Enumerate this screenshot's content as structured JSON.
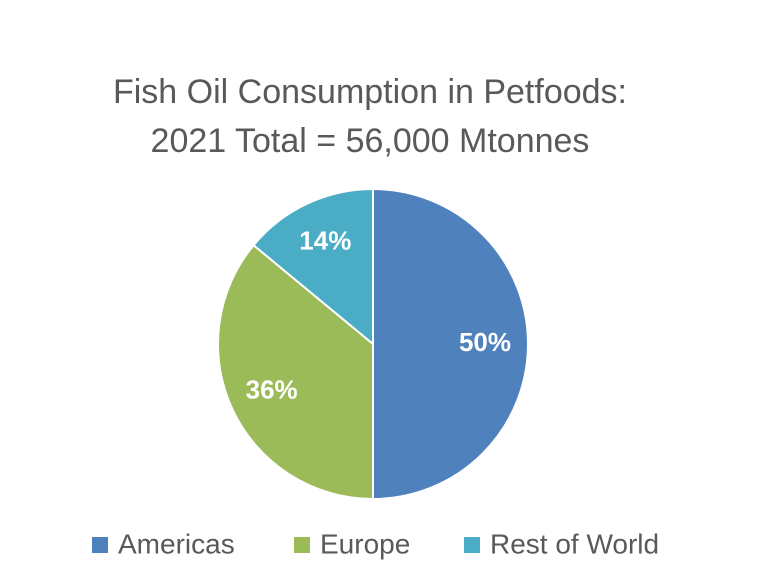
{
  "chart_data": {
    "type": "pie",
    "title": "Fish Oil Consumption in Petfoods:",
    "subtitle": "2021 Total = 56,000 Mtonnes",
    "categories": [
      "Americas",
      "Europe",
      "Rest of World"
    ],
    "values": [
      50,
      36,
      14
    ],
    "value_labels": [
      "50%",
      "36%",
      "14%"
    ],
    "colors": [
      "#4f81bd",
      "#9bbb59",
      "#4bacc6"
    ],
    "legend": "bottom"
  }
}
